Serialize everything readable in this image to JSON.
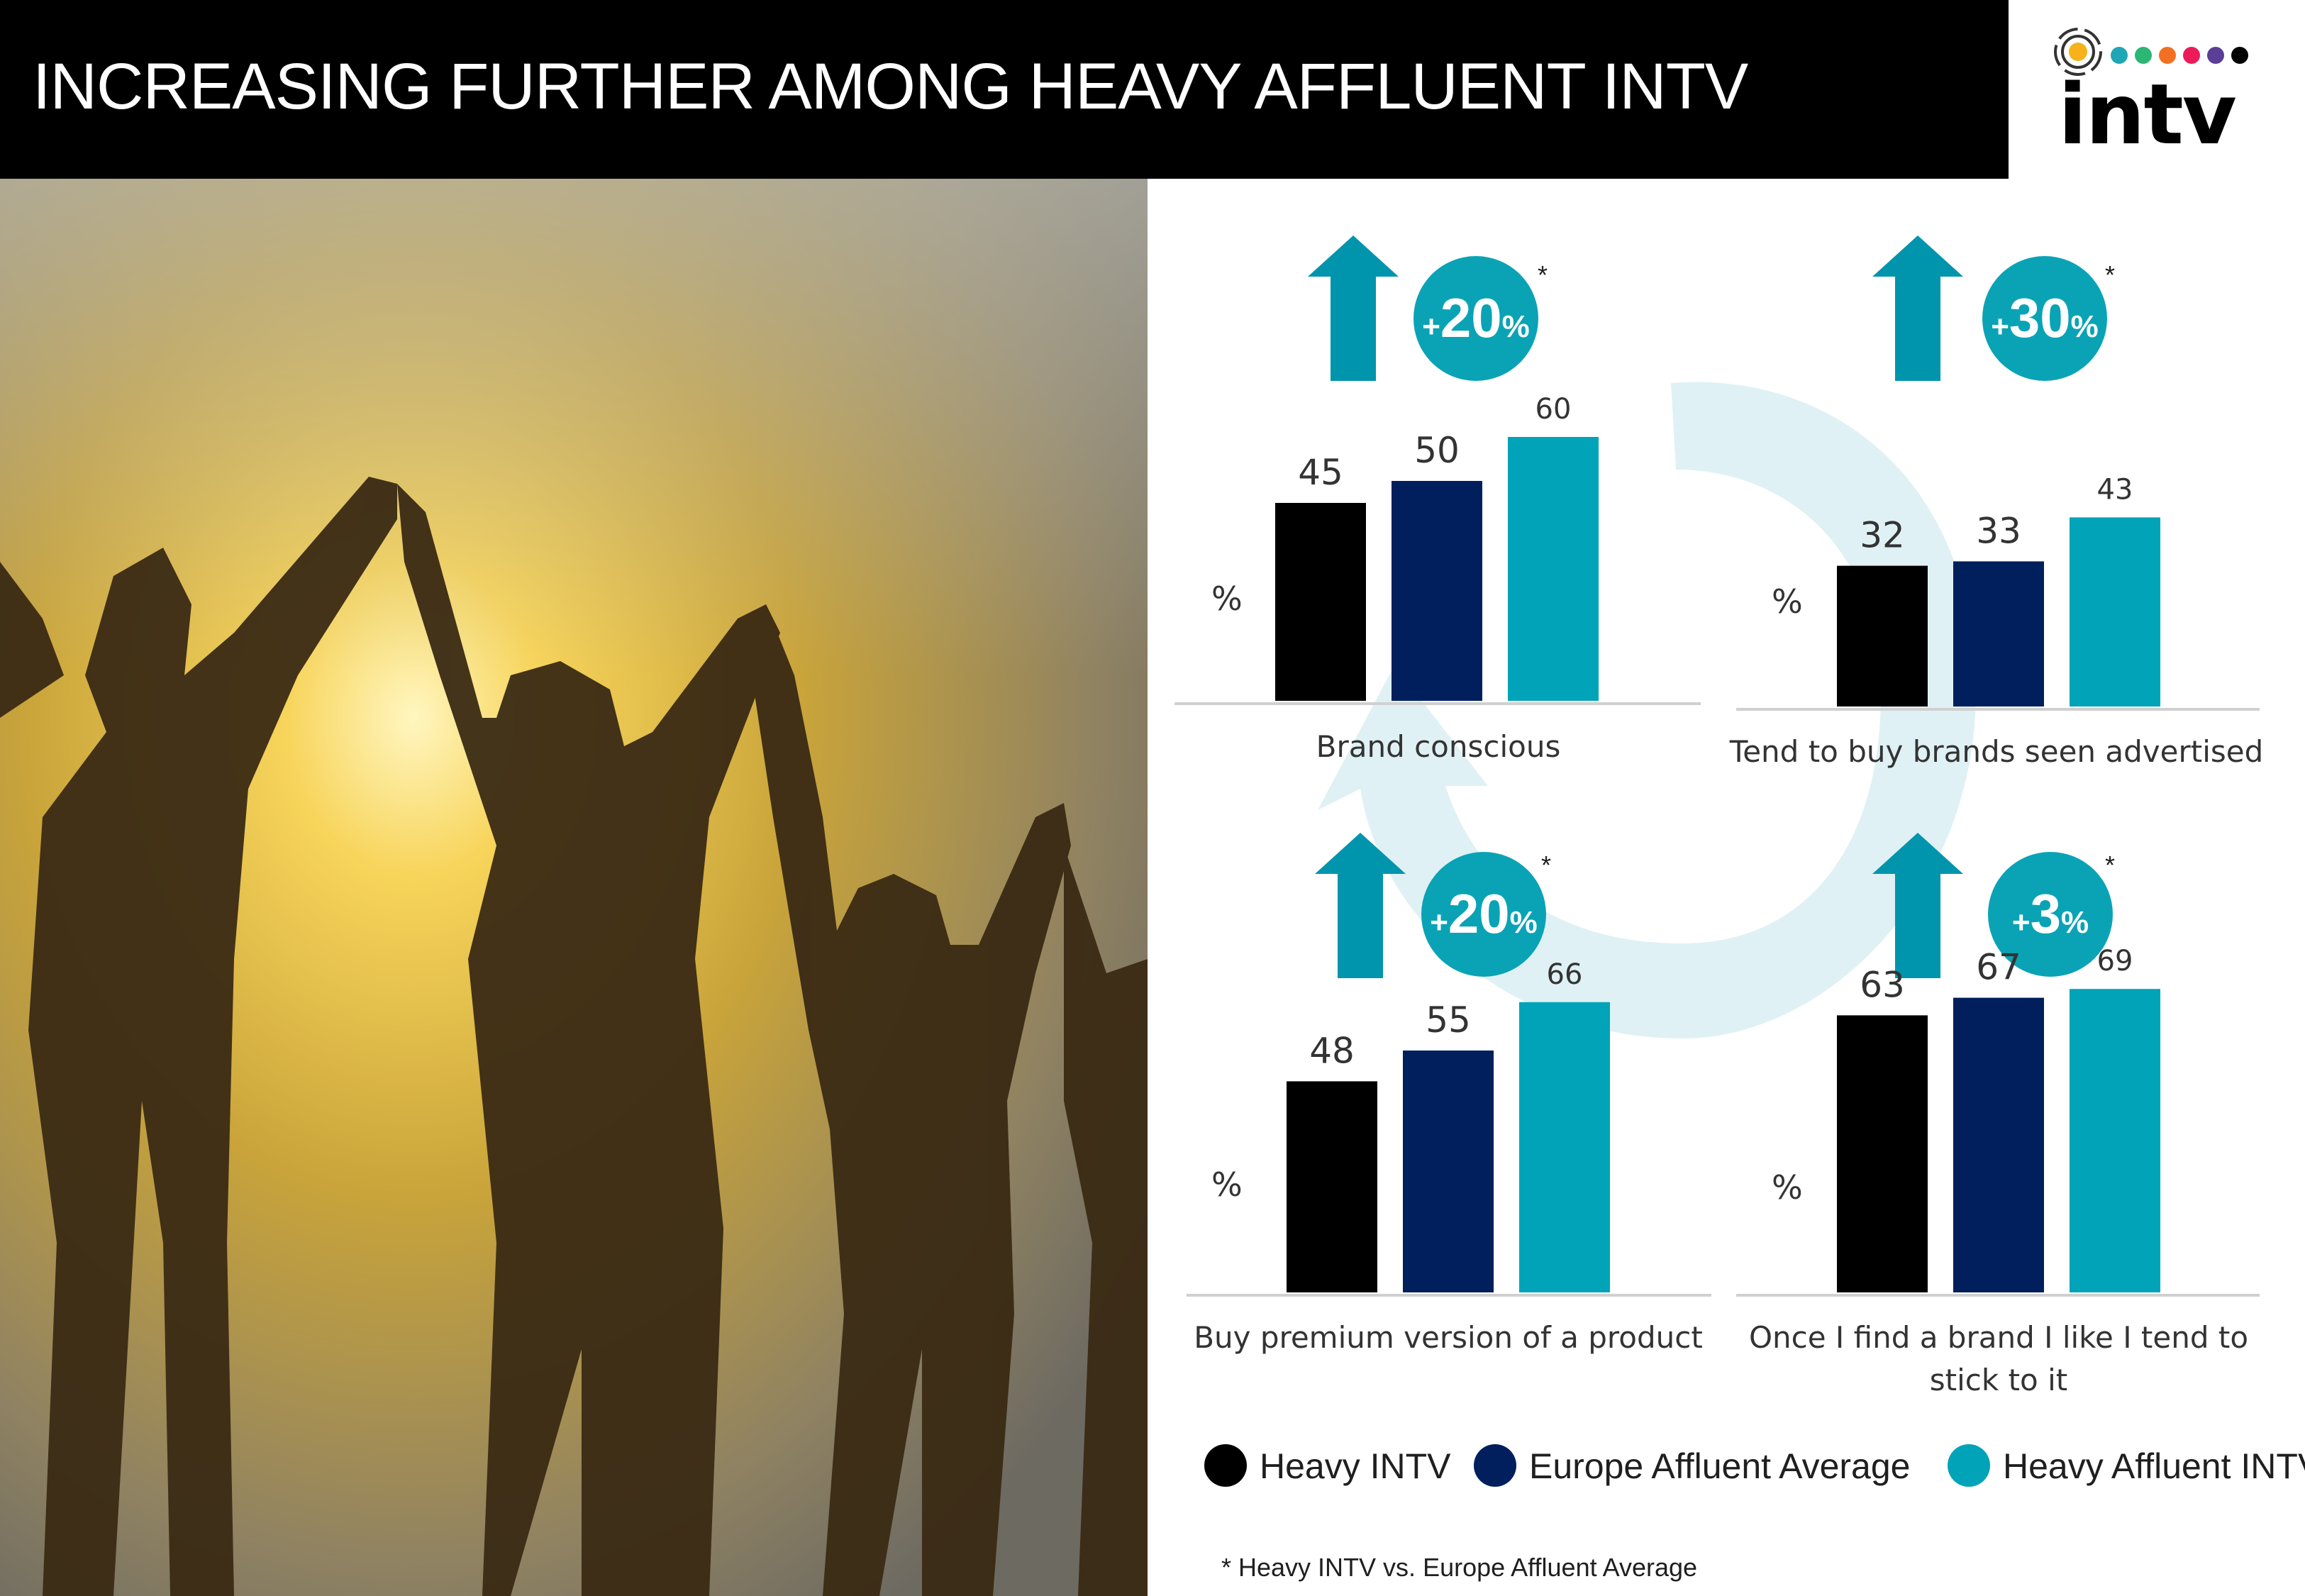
{
  "header": {
    "title": "INCREASING FURTHER AMONG HEAVY AFFLUENT INTV",
    "logo_text": "intv",
    "logo_dot_colors": [
      "#1ea6b5",
      "#2bb673",
      "#f36f21",
      "#ec1c5b",
      "#5b3e96",
      "#000000"
    ]
  },
  "colors": {
    "heavy_intv": "#000000",
    "europe_affluent_average": "#001f5c",
    "heavy_affluent_intv": "#00a3b8",
    "arrow": "#0095ad",
    "badge": "#0aa3b6",
    "cycle_arrow": "#dff1f4"
  },
  "chart_data": [
    {
      "type": "bar",
      "title": "Brand conscious",
      "unit_label": "%",
      "categories": [
        "Heavy INTV",
        "Europe Affluent Average",
        "Heavy Affluent INTV"
      ],
      "values": [
        45,
        50,
        60
      ],
      "badge": {
        "plus": "+",
        "number": "20",
        "percent": "%",
        "star": "*"
      }
    },
    {
      "type": "bar",
      "title": "Tend to buy brands seen advertised",
      "unit_label": "%",
      "categories": [
        "Heavy INTV",
        "Europe Affluent Average",
        "Heavy Affluent INTV"
      ],
      "values": [
        32,
        33,
        43
      ],
      "badge": {
        "plus": "+",
        "number": "30",
        "percent": "%",
        "star": "*"
      }
    },
    {
      "type": "bar",
      "title": "Buy premium version of a product",
      "unit_label": "%",
      "categories": [
        "Heavy INTV",
        "Europe Affluent Average",
        "Heavy Affluent INTV"
      ],
      "values": [
        48,
        55,
        66
      ],
      "badge": {
        "plus": "+",
        "number": "20",
        "percent": "%",
        "star": "*"
      }
    },
    {
      "type": "bar",
      "title_lines": [
        "Once I find a brand I like I tend to",
        "stick to it"
      ],
      "unit_label": "%",
      "categories": [
        "Heavy INTV",
        "Europe Affluent Average",
        "Heavy Affluent INTV"
      ],
      "values": [
        63,
        67,
        69
      ],
      "badge": {
        "plus": "+",
        "number": "3",
        "percent": "%",
        "star": "*"
      }
    }
  ],
  "legend": [
    {
      "label": "Heavy INTV",
      "color": "#000000"
    },
    {
      "label": "Europe Affluent Average",
      "color": "#001f5c"
    },
    {
      "label": "Heavy Affluent INTV",
      "color": "#00a3b8"
    }
  ],
  "footnote": "* Heavy INTV vs. Europe Affluent Average"
}
